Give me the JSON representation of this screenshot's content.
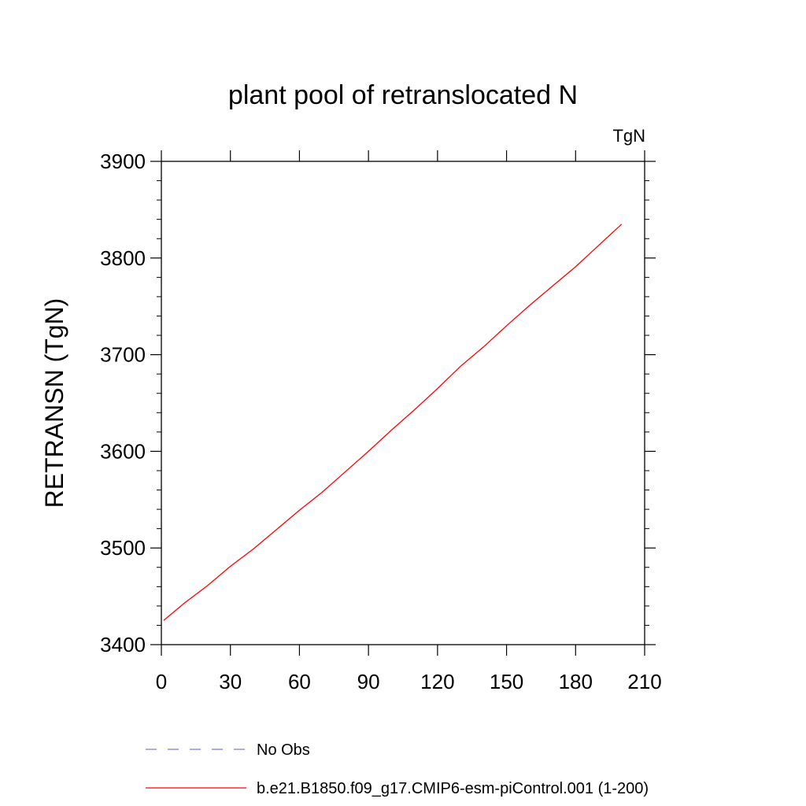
{
  "chart_data": {
    "type": "line",
    "title": "plant pool of retranslocated N",
    "units_label": "TgN",
    "ylabel": "RETRANSN  (TgN)",
    "xlabel": "",
    "xlim": [
      0,
      210
    ],
    "ylim": [
      3400,
      3900
    ],
    "x_ticks": [
      "0",
      "30",
      "60",
      "90",
      "120",
      "150",
      "180",
      "210"
    ],
    "y_ticks": [
      "3400",
      "3500",
      "3600",
      "3700",
      "3800",
      "3900"
    ],
    "grid": false,
    "legend_position": "bottom",
    "series": [
      {
        "name": "No Obs",
        "color": "#7b7bd6",
        "dash": "dashed",
        "x": [],
        "y": []
      },
      {
        "name": "b.e21.B1850.f09_g17.CMIP6-esm-piControl.001 (1-200)",
        "color": "#ff0000",
        "dash": "solid",
        "x": [
          1,
          10,
          20,
          30,
          40,
          50,
          60,
          70,
          80,
          90,
          100,
          110,
          120,
          130,
          140,
          150,
          160,
          170,
          180,
          190,
          200
        ],
        "y": [
          3425,
          3443,
          3461,
          3481,
          3499,
          3519,
          3539,
          3558,
          3579,
          3600,
          3622,
          3643,
          3665,
          3688,
          3708,
          3730,
          3751,
          3771,
          3791,
          3813,
          3835
        ]
      }
    ]
  }
}
